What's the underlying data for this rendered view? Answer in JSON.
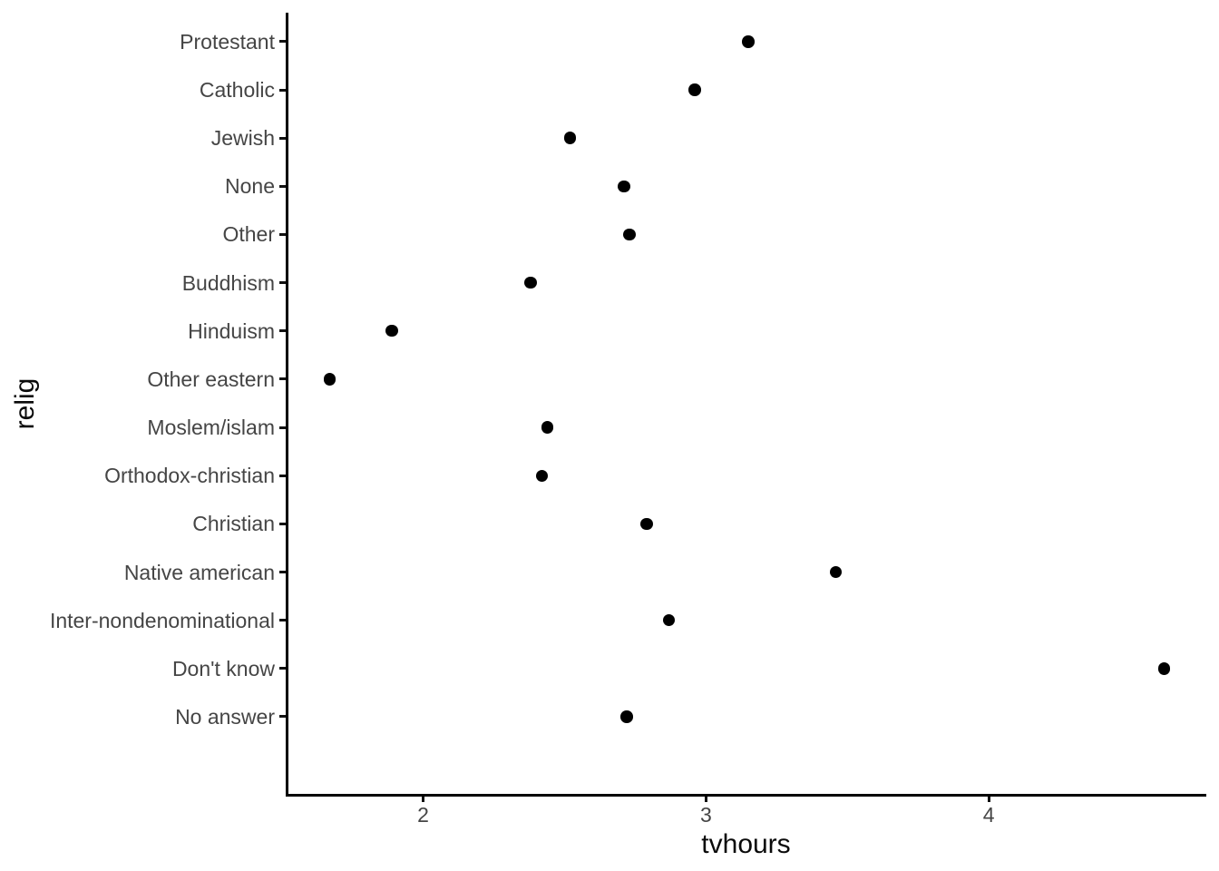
{
  "chart_data": {
    "type": "scatter",
    "subtype": "horizontal-dot-plot",
    "title": "",
    "xlabel": "tvhours",
    "ylabel": "relig",
    "categories": [
      "Protestant",
      "Catholic",
      "Jewish",
      "None",
      "Other",
      "Buddhism",
      "Hinduism",
      "Other eastern",
      "Moslem/islam",
      "Orthodox-christian",
      "Christian",
      "Native american",
      "Inter-nondenominational",
      "Don't know",
      "No answer"
    ],
    "values": [
      3.15,
      2.96,
      2.52,
      2.71,
      2.73,
      2.38,
      1.89,
      1.67,
      2.44,
      2.42,
      2.79,
      3.46,
      2.87,
      4.62,
      2.72
    ],
    "x_ticks": [
      2,
      3,
      4
    ],
    "xlim": [
      1.519,
      4.769
    ],
    "grid": "off",
    "legend": "none",
    "colors": {
      "point": "#000000",
      "axis_line": "#000000",
      "tick_mark": "#111111",
      "tick_label": "#454545",
      "axis_title": "#0a0a0a",
      "background": "#ffffff"
    }
  }
}
